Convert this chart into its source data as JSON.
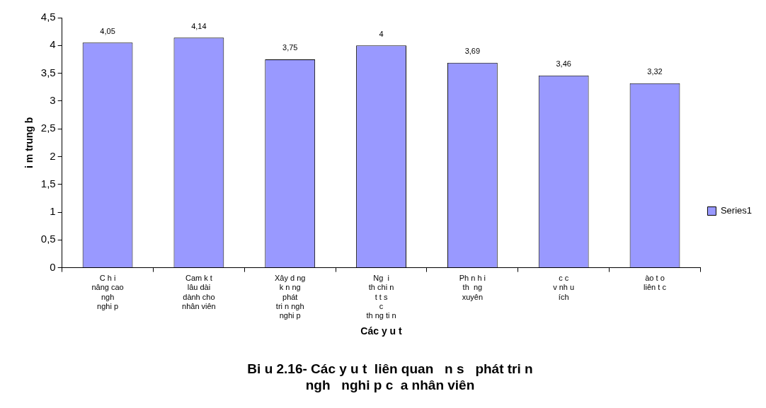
{
  "chart_data": {
    "type": "bar",
    "title": "Bi u 2.16- Các y u t  liên quan   n s   phát tri n\nngh   nghi p c  a nhân viên",
    "xlabel": "Các y u t",
    "ylabel": "i m trung b",
    "categories": [
      "C h i\nnâng cao\nngh\nnghi p",
      "Cam k t\nlâu dài\ndành cho\nnhân viên",
      "Xây d ng\nk n ng\nphát\ntri n ngh\nnghi p",
      "Ng  i\nth chi n\nt t s\nc\nth ng ti n",
      "Ph n h i\nth  ng\nxuyên",
      "c c\nv nh u\ních",
      "ào t o\nliên t c"
    ],
    "series": [
      {
        "name": "Series1",
        "color": "#9999ff",
        "values": [
          4.05,
          4.14,
          3.75,
          4,
          3.69,
          3.46,
          3.32
        ],
        "value_labels": [
          "4,05",
          "4,14",
          "3,75",
          "4",
          "3,69",
          "3,46",
          "3,32"
        ]
      }
    ],
    "ylim": [
      0,
      4.5
    ],
    "yticks": [
      0,
      {
        "value": 0.5,
        "label": "0,5"
      },
      1,
      {
        "value": 1.5,
        "label": "1,5"
      },
      2,
      {
        "value": 2.5,
        "label": "2,5"
      },
      3,
      {
        "value": 3.5,
        "label": "3,5"
      },
      4,
      {
        "value": 4.5,
        "label": "4,5"
      }
    ],
    "grid": false,
    "legend": "right"
  }
}
